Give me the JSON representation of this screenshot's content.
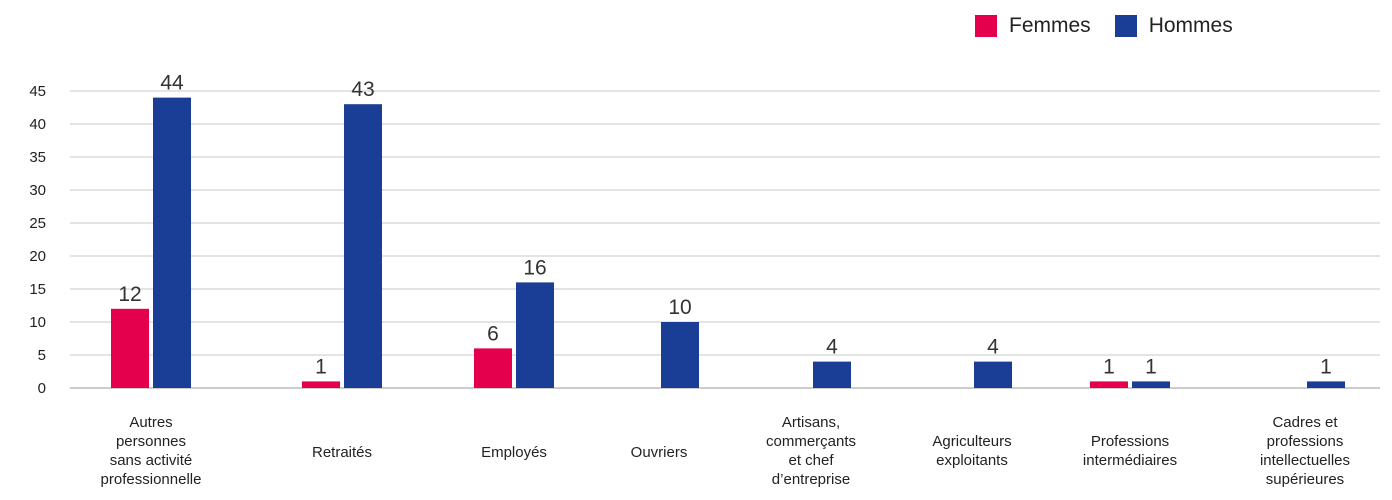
{
  "chart_data": {
    "type": "bar",
    "categories": [
      [
        "Autres",
        "personnes",
        "sans activité",
        "professionnelle"
      ],
      [
        "Retraités"
      ],
      [
        "Employés"
      ],
      [
        "Ouvriers"
      ],
      [
        "Artisans,",
        "commerçants",
        "et chef",
        "d’entreprise"
      ],
      [
        "Agriculteurs",
        "exploitants"
      ],
      [
        "Professions",
        "intermédiaires"
      ],
      [
        "Cadres et",
        "professions",
        "intellectuelles",
        "supérieures"
      ]
    ],
    "series": [
      {
        "name": "Femmes",
        "color": "#e5004d",
        "values": [
          12,
          1,
          6,
          0,
          0,
          0,
          1,
          0
        ],
        "labels": [
          "12",
          "1",
          "6",
          "",
          "",
          "",
          "1",
          ""
        ]
      },
      {
        "name": "Hommes",
        "color": "#1a3e95",
        "values": [
          44,
          43,
          16,
          10,
          4,
          4,
          1,
          1
        ],
        "labels": [
          "44",
          "43",
          "16",
          "10",
          "4",
          "4",
          "1",
          "1"
        ]
      }
    ],
    "yticks": [
      0,
      5,
      10,
      15,
      20,
      25,
      30,
      35,
      40,
      45
    ],
    "ylim": [
      0,
      45
    ],
    "grid": true,
    "legend_position": "top-right"
  }
}
